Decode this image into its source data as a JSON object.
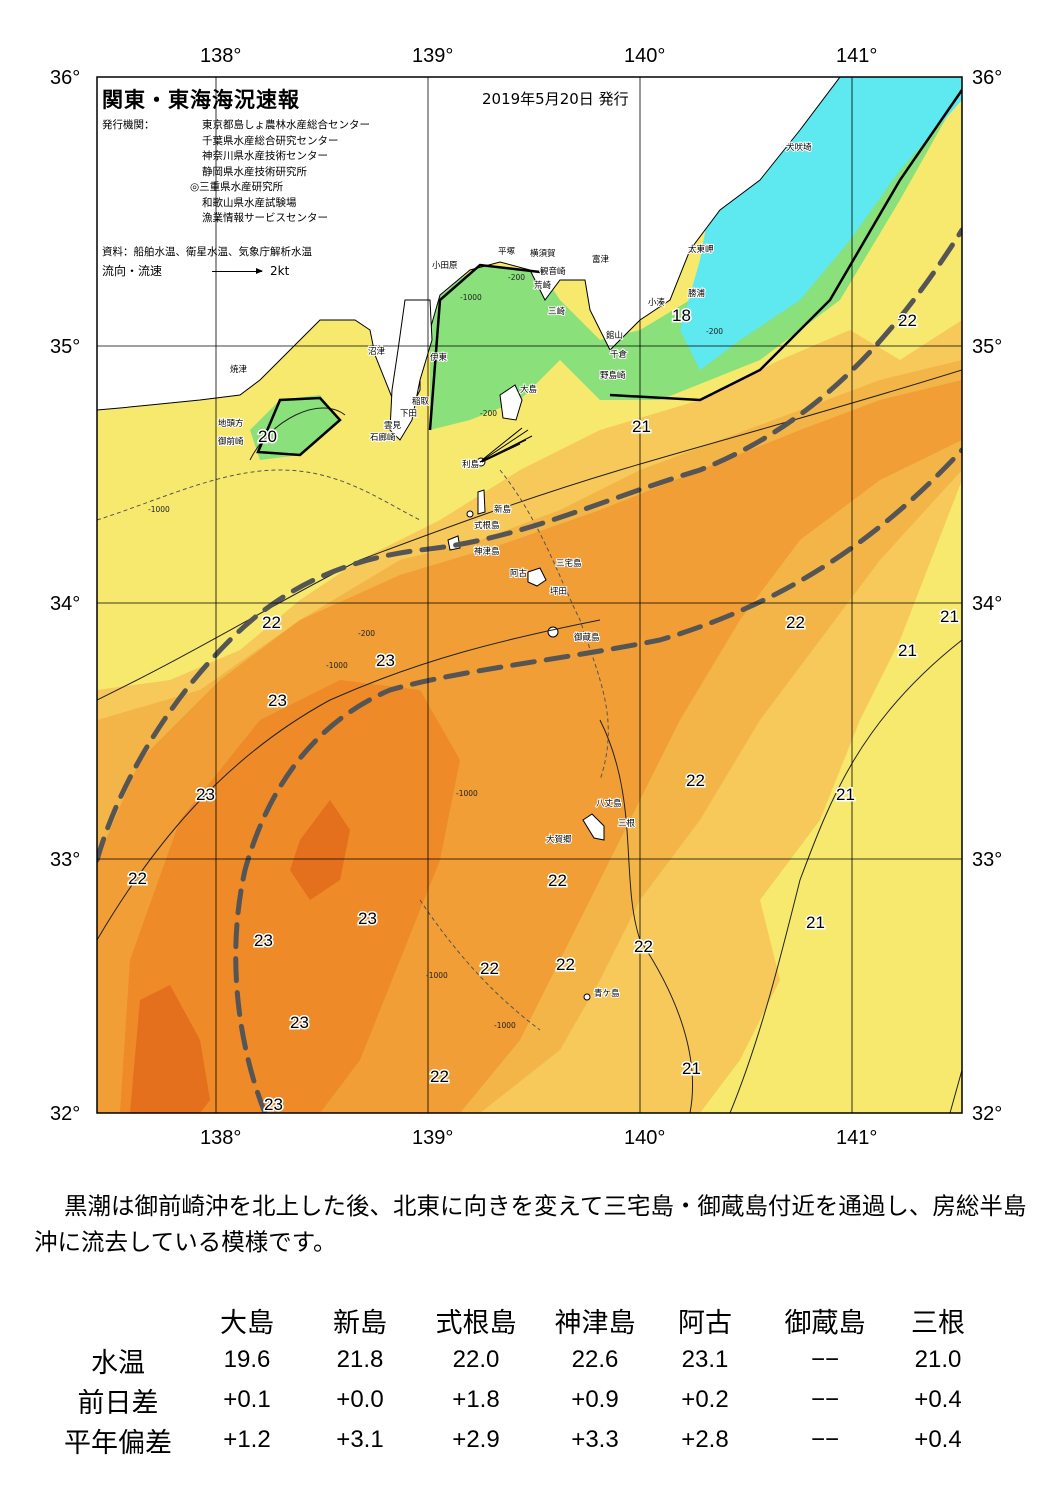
{
  "header": {
    "title": "関東・東海海況速報",
    "date": "2019年5月20日 発行",
    "issuer_label": "発行機関：",
    "issuers": [
      "東京都島しょ農林水産総合センター",
      "千葉県水産総合研究センター",
      "神奈川県水産技術センター",
      "静岡県水産技術研究所",
      "◎三重県水産研究所",
      "和歌山県水産試験場",
      "漁業情報サービスセンター"
    ],
    "source": "資料：船舶水温、衛星水温、気象庁解析水温",
    "flow_label": "流向・流速",
    "flow_scale": "2kt"
  },
  "map": {
    "lon_labels": [
      "138°",
      "139°",
      "140°",
      "141°"
    ],
    "lat_labels": [
      "36°",
      "35°",
      "34°",
      "33°",
      "32°"
    ],
    "place_names": [
      "犬吠埼",
      "太東岬",
      "勝浦",
      "小湊",
      "富津",
      "館山",
      "千倉",
      "野島崎",
      "横須賀",
      "観音崎",
      "荒崎",
      "三崎",
      "平塚",
      "小田原",
      "沼津",
      "伊東",
      "稲取",
      "下田",
      "雲見",
      "石廊崎",
      "焼津",
      "地頭方",
      "御前崎",
      "大島",
      "利島",
      "新島",
      "式根島",
      "神津島",
      "三宅島",
      "阿古",
      "坪田",
      "御蔵島",
      "八丈島",
      "三根",
      "大賀郷",
      "青ケ島"
    ],
    "depth_labels": [
      "-200",
      "-1000"
    ],
    "colors": {
      "land": "#ffffff",
      "cold_cyan": "#5ee8f0",
      "green": "#8ae07a",
      "yellow": "#f7e96e",
      "light_orange": "#f6c95a",
      "orange": "#f3a53a",
      "deep_orange": "#ee8a28",
      "darkest": "#e46f1c",
      "kuroshio_axis": "#555555"
    }
  },
  "temperature_labels": [
    "20",
    "21",
    "21",
    "21",
    "21",
    "21",
    "21",
    "21",
    "22",
    "22",
    "22",
    "22",
    "22",
    "22",
    "22",
    "22",
    "22",
    "23",
    "23",
    "23",
    "23",
    "23",
    "23",
    "23",
    "23",
    "18"
  ],
  "comment": "黒潮は御前崎沖を北上した後、北東に向きを変えて三宅島・御蔵島付近を通過し、房総半島沖に流去している模様です。",
  "table": {
    "stations": [
      "大島",
      "新島",
      "式根島",
      "神津島",
      "阿古",
      "御蔵島",
      "三根"
    ],
    "rows": [
      {
        "label": "水温",
        "values": [
          "19.6",
          "21.8",
          "22.0",
          "22.6",
          "23.1",
          "−−",
          "21.0"
        ]
      },
      {
        "label": "前日差",
        "values": [
          "+0.1",
          "+0.0",
          "+1.8",
          "+0.9",
          "+0.2",
          "−−",
          "+0.4"
        ]
      },
      {
        "label": "平年偏差",
        "values": [
          "+1.2",
          "+3.1",
          "+2.9",
          "+3.3",
          "+2.8",
          "−−",
          "+0.4"
        ]
      }
    ]
  }
}
